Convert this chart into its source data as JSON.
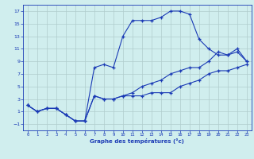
{
  "line1_x": [
    0,
    1,
    2,
    3,
    4,
    5,
    6,
    7,
    8,
    9,
    10,
    11,
    12,
    13,
    14,
    15,
    16,
    17,
    18,
    19,
    20,
    21,
    22,
    23
  ],
  "line1_y": [
    2,
    1,
    1.5,
    1.5,
    0.5,
    -0.5,
    -0.5,
    3.5,
    3,
    3,
    3.5,
    3.5,
    3.5,
    4,
    4,
    4,
    5,
    5.5,
    6,
    7,
    7.5,
    7.5,
    8,
    8.5
  ],
  "line2_x": [
    0,
    1,
    2,
    3,
    4,
    5,
    6,
    7,
    8,
    9,
    10,
    11,
    12,
    13,
    14,
    15,
    16,
    17,
    18,
    19,
    20,
    21,
    22,
    23
  ],
  "line2_y": [
    2,
    1,
    1.5,
    1.5,
    0.5,
    -0.5,
    -0.5,
    8,
    8.5,
    8,
    13,
    15.5,
    15.5,
    15.5,
    16,
    17,
    17,
    16.5,
    12.5,
    11,
    10,
    10,
    10.5,
    9
  ],
  "line3_x": [
    0,
    1,
    2,
    3,
    4,
    5,
    6,
    7,
    8,
    9,
    10,
    11,
    12,
    13,
    14,
    15,
    16,
    17,
    18,
    19,
    20,
    21,
    22,
    23
  ],
  "line3_y": [
    2,
    1,
    1.5,
    1.5,
    0.5,
    -0.5,
    -0.5,
    3.5,
    3,
    3,
    3.5,
    4,
    5,
    5.5,
    6,
    7,
    7.5,
    8,
    8,
    9,
    10.5,
    10,
    11,
    9
  ],
  "line_color": "#1a3ab5",
  "bg_color": "#d0eeee",
  "grid_color": "#b0cccc",
  "xlabel": "Graphe des températures (°c)",
  "xlim": [
    -0.5,
    23.5
  ],
  "ylim": [
    -2,
    18
  ],
  "xticks": [
    0,
    1,
    2,
    3,
    4,
    5,
    6,
    7,
    8,
    9,
    10,
    11,
    12,
    13,
    14,
    15,
    16,
    17,
    18,
    19,
    20,
    21,
    22,
    23
  ],
  "yticks": [
    -1,
    1,
    3,
    5,
    7,
    9,
    11,
    13,
    15,
    17
  ]
}
